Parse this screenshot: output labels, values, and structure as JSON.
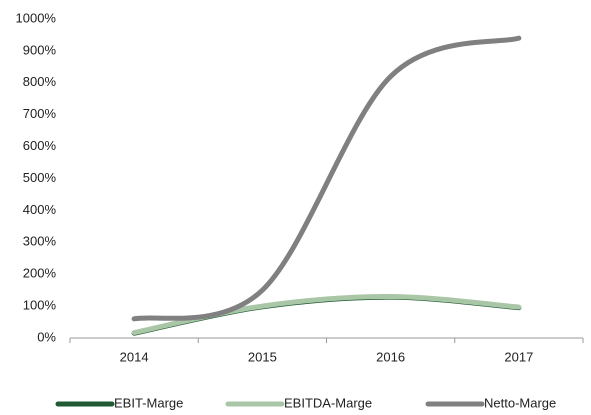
{
  "chart_data": {
    "type": "line",
    "categories": [
      "2014",
      "2015",
      "2016",
      "2017"
    ],
    "series": [
      {
        "name": "EBIT-Marge",
        "color": "#1f5a32",
        "values": [
          15,
          98,
          128,
          95
        ]
      },
      {
        "name": "EBITDA-Marge",
        "color": "#a9c7a6",
        "values": [
          17,
          100,
          130,
          97
        ]
      },
      {
        "name": "Netto-Marge",
        "color": "#808080",
        "values": [
          60,
          150,
          820,
          940
        ]
      }
    ],
    "ylim": [
      0,
      1000
    ],
    "yticks": [
      {
        "value": 0,
        "label": "0%"
      },
      {
        "value": 100,
        "label": "100%"
      },
      {
        "value": 200,
        "label": "200%"
      },
      {
        "value": 300,
        "label": "300%"
      },
      {
        "value": 400,
        "label": "400%"
      },
      {
        "value": 500,
        "label": "500%"
      },
      {
        "value": 600,
        "label": "600%"
      },
      {
        "value": 700,
        "label": "700%"
      },
      {
        "value": 800,
        "label": "800%"
      },
      {
        "value": 900,
        "label": "900%"
      },
      {
        "value": 1000,
        "label": "1000%"
      }
    ],
    "grid": false,
    "legend": "bottom"
  }
}
